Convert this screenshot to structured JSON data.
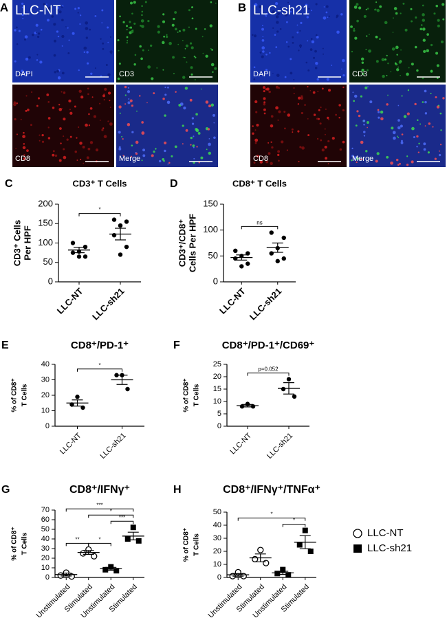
{
  "images": [
    {
      "letter": "A",
      "title": "LLC-NT",
      "tiles": [
        "DAPI",
        "CD3",
        "CD8",
        "Merge"
      ]
    },
    {
      "letter": "B",
      "title": "LLC-sh21",
      "tiles": [
        "DAPI",
        "CD3",
        "CD8",
        "Merge"
      ]
    }
  ],
  "chart_data": [
    {
      "type": "dot",
      "label": "C",
      "title": "CD3⁺ T Cells",
      "ylabel": [
        "CD3⁺ Cells",
        "Per HPF"
      ],
      "categories": [
        "LLC-NT",
        "LLC-sh21"
      ],
      "markers": [
        "circle",
        "circle"
      ],
      "points": [
        [
          100,
          90,
          78,
          75,
          65,
          65
        ],
        [
          160,
          155,
          145,
          120,
          90,
          70
        ]
      ],
      "means": [
        82,
        123
      ],
      "sems": [
        7,
        15
      ],
      "ylim": [
        0,
        200
      ],
      "yticks": [
        0,
        50,
        100,
        150,
        200
      ],
      "brackets": [
        {
          "from": 0,
          "to": 1,
          "label": "*"
        }
      ]
    },
    {
      "type": "dot",
      "label": "D",
      "title": "CD8⁺ T  Cells",
      "ylabel": [
        "CD3⁺/CD8⁺",
        "Cells Per HPF"
      ],
      "categories": [
        "LLC-NT",
        "LLC-sh21"
      ],
      "markers": [
        "circle",
        "circle"
      ],
      "points": [
        [
          60,
          55,
          50,
          45,
          35,
          30
        ],
        [
          95,
          85,
          65,
          55,
          45,
          40
        ]
      ],
      "means": [
        47,
        66
      ],
      "sems": [
        5,
        9
      ],
      "ylim": [
        0,
        150
      ],
      "yticks": [
        0,
        50,
        100,
        150
      ],
      "brackets": [
        {
          "from": 0,
          "to": 1,
          "label": "ns"
        }
      ]
    },
    {
      "type": "dot",
      "label": "E",
      "title": "CD8⁺/PD-1⁺",
      "ylabel": [
        "% of CD8⁺",
        "T Cells"
      ],
      "categories": [
        "LLC-NT",
        "LLC-sh21"
      ],
      "markers": [
        "circle",
        "circle"
      ],
      "points": [
        [
          19,
          14,
          12
        ],
        [
          33,
          33,
          24
        ]
      ],
      "means": [
        15,
        30
      ],
      "sems": [
        2,
        3
      ],
      "ylim": [
        0,
        40
      ],
      "yticks": [
        0,
        10,
        20,
        30,
        40
      ],
      "brackets": [
        {
          "from": 0,
          "to": 1,
          "label": "*"
        }
      ]
    },
    {
      "type": "dot",
      "label": "F",
      "title": "CD8⁺/PD-1⁺/CD69⁺",
      "ylabel": [
        "% of CD8⁺",
        "T Cells"
      ],
      "categories": [
        "LLC-NT",
        "LLC-sh21"
      ],
      "markers": [
        "circle",
        "circle"
      ],
      "points": [
        [
          9,
          8,
          8
        ],
        [
          19,
          15,
          12
        ]
      ],
      "means": [
        8.3,
        15.3
      ],
      "sems": [
        0.5,
        2.3
      ],
      "ylim": [
        0,
        25
      ],
      "yticks": [
        0,
        5,
        10,
        15,
        20,
        25
      ],
      "brackets": [
        {
          "from": 0,
          "to": 1,
          "label": "p=0.052"
        }
      ]
    },
    {
      "type": "dot",
      "label": "G",
      "title": "CD8⁺/IFNγ⁺",
      "ylabel": [
        "% of CD8⁺",
        "T Cells"
      ],
      "categories": [
        "Unstimulated",
        "Stimulated",
        "Unstimulated",
        "Stimulated"
      ],
      "markers": [
        "open-circle",
        "open-circle",
        "square",
        "square"
      ],
      "points": [
        [
          5,
          2,
          1
        ],
        [
          29,
          25,
          22
        ],
        [
          11,
          8,
          7
        ],
        [
          52,
          40,
          38
        ]
      ],
      "means": [
        3,
        26,
        9,
        43
      ],
      "sems": [
        1.5,
        2,
        1.5,
        4
      ],
      "ylim": [
        0,
        70
      ],
      "yticks": [
        0,
        10,
        20,
        30,
        40,
        50,
        60,
        70
      ],
      "brackets": [
        {
          "from": 0,
          "to": 1,
          "label": "**"
        },
        {
          "from": 1,
          "to": 2,
          "label": "*"
        },
        {
          "from": 2,
          "to": 3,
          "label": "***"
        },
        {
          "from": 1,
          "to": 3,
          "label": "*"
        },
        {
          "from": 0,
          "to": 3,
          "label": "***"
        }
      ]
    },
    {
      "type": "dot",
      "label": "H",
      "title": "CD8⁺/IFNγ⁺/TNFα⁺",
      "ylabel": [
        "% of CD8⁺",
        "T Cells"
      ],
      "categories": [
        "Unstimulated",
        "Stimulated",
        "Unstimulated",
        "Stimulated"
      ],
      "markers": [
        "open-circle",
        "open-circle",
        "square",
        "square"
      ],
      "points": [
        [
          4,
          1,
          1
        ],
        [
          21,
          14,
          11
        ],
        [
          6,
          3,
          2
        ],
        [
          36,
          25,
          20
        ]
      ],
      "means": [
        2,
        15,
        3.5,
        27
      ],
      "sems": [
        1,
        3,
        1.2,
        5
      ],
      "ylim": [
        0,
        50
      ],
      "yticks": [
        0,
        10,
        20,
        30,
        40,
        50
      ],
      "brackets": [
        {
          "from": 2,
          "to": 3,
          "label": "*"
        },
        {
          "from": 0,
          "to": 3,
          "label": "*"
        }
      ]
    }
  ],
  "legend": {
    "items": [
      {
        "label": "LLC-NT",
        "marker": "open-circle"
      },
      {
        "label": "LLC-sh21",
        "marker": "square"
      }
    ]
  }
}
